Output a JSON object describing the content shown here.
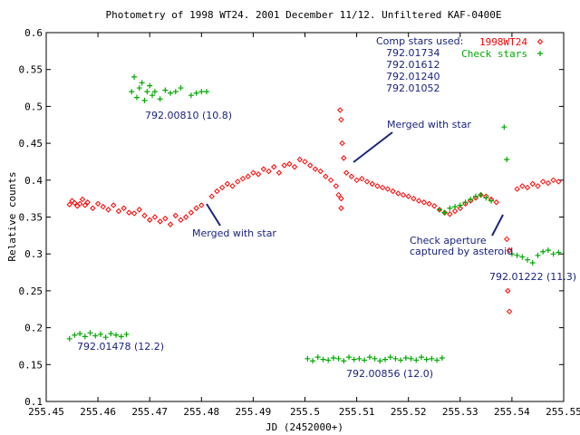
{
  "chart_data": {
    "type": "scatter",
    "title": "Photometry of 1998 WT24. 2001 December 11/12. Unfiltered KAF-0400E",
    "xlabel": "JD (2452000+)",
    "ylabel": "Relative counts",
    "xlim": [
      255.45,
      255.55
    ],
    "ylim": [
      0.1,
      0.6
    ],
    "x_ticks": [
      "255.45",
      "255.46",
      "255.47",
      "255.48",
      "255.49",
      "255.5",
      "255.51",
      "255.52",
      "255.53",
      "255.54",
      "255.55"
    ],
    "y_ticks": [
      "0.1",
      "0.15",
      "0.2",
      "0.25",
      "0.3",
      "0.35",
      "0.4",
      "0.45",
      "0.5",
      "0.55",
      "0.6"
    ],
    "grid": false,
    "legend_position": "top-right",
    "series": [
      {
        "name": "1998WT24",
        "marker": "diamond",
        "color": "#ff0000",
        "points": [
          [
            255.4545,
            0.367
          ],
          [
            255.455,
            0.372
          ],
          [
            255.4555,
            0.369
          ],
          [
            255.456,
            0.365
          ],
          [
            255.4565,
            0.368
          ],
          [
            255.457,
            0.374
          ],
          [
            255.4575,
            0.366
          ],
          [
            255.458,
            0.37
          ],
          [
            255.459,
            0.362
          ],
          [
            255.46,
            0.368
          ],
          [
            255.461,
            0.364
          ],
          [
            255.462,
            0.36
          ],
          [
            255.463,
            0.366
          ],
          [
            255.464,
            0.358
          ],
          [
            255.465,
            0.362
          ],
          [
            255.466,
            0.356
          ],
          [
            255.467,
            0.355
          ],
          [
            255.468,
            0.36
          ],
          [
            255.469,
            0.352
          ],
          [
            255.47,
            0.346
          ],
          [
            255.471,
            0.35
          ],
          [
            255.472,
            0.344
          ],
          [
            255.473,
            0.348
          ],
          [
            255.474,
            0.34
          ],
          [
            255.475,
            0.352
          ],
          [
            255.476,
            0.346
          ],
          [
            255.477,
            0.35
          ],
          [
            255.478,
            0.356
          ],
          [
            255.479,
            0.362
          ],
          [
            255.48,
            0.366
          ],
          [
            255.482,
            0.378
          ],
          [
            255.483,
            0.385
          ],
          [
            255.484,
            0.39
          ],
          [
            255.485,
            0.395
          ],
          [
            255.486,
            0.392
          ],
          [
            255.487,
            0.398
          ],
          [
            255.488,
            0.402
          ],
          [
            255.489,
            0.405
          ],
          [
            255.49,
            0.41
          ],
          [
            255.491,
            0.408
          ],
          [
            255.492,
            0.415
          ],
          [
            255.493,
            0.412
          ],
          [
            255.494,
            0.418
          ],
          [
            255.495,
            0.41
          ],
          [
            255.496,
            0.42
          ],
          [
            255.497,
            0.422
          ],
          [
            255.498,
            0.418
          ],
          [
            255.499,
            0.428
          ],
          [
            255.5,
            0.425
          ],
          [
            255.501,
            0.42
          ],
          [
            255.502,
            0.415
          ],
          [
            255.503,
            0.412
          ],
          [
            255.504,
            0.405
          ],
          [
            255.505,
            0.4
          ],
          [
            255.506,
            0.392
          ],
          [
            255.5065,
            0.38
          ],
          [
            255.507,
            0.375
          ],
          [
            255.5068,
            0.495
          ],
          [
            255.507,
            0.482
          ],
          [
            255.5072,
            0.45
          ],
          [
            255.5075,
            0.43
          ],
          [
            255.507,
            0.362
          ],
          [
            255.508,
            0.41
          ],
          [
            255.509,
            0.405
          ],
          [
            255.51,
            0.4
          ],
          [
            255.511,
            0.402
          ],
          [
            255.512,
            0.398
          ],
          [
            255.513,
            0.395
          ],
          [
            255.514,
            0.392
          ],
          [
            255.515,
            0.39
          ],
          [
            255.516,
            0.388
          ],
          [
            255.517,
            0.385
          ],
          [
            255.518,
            0.382
          ],
          [
            255.519,
            0.38
          ],
          [
            255.52,
            0.378
          ],
          [
            255.521,
            0.375
          ],
          [
            255.522,
            0.372
          ],
          [
            255.523,
            0.37
          ],
          [
            255.524,
            0.368
          ],
          [
            255.525,
            0.365
          ],
          [
            255.526,
            0.36
          ],
          [
            255.527,
            0.356
          ],
          [
            255.528,
            0.354
          ],
          [
            255.529,
            0.358
          ],
          [
            255.53,
            0.362
          ],
          [
            255.531,
            0.368
          ],
          [
            255.532,
            0.372
          ],
          [
            255.533,
            0.376
          ],
          [
            255.534,
            0.38
          ],
          [
            255.535,
            0.378
          ],
          [
            255.536,
            0.374
          ],
          [
            255.537,
            0.37
          ],
          [
            255.539,
            0.32
          ],
          [
            255.5395,
            0.305
          ],
          [
            255.5392,
            0.25
          ],
          [
            255.5395,
            0.222
          ],
          [
            255.541,
            0.388
          ],
          [
            255.542,
            0.392
          ],
          [
            255.543,
            0.39
          ],
          [
            255.544,
            0.395
          ],
          [
            255.545,
            0.392
          ],
          [
            255.546,
            0.398
          ],
          [
            255.547,
            0.396
          ],
          [
            255.548,
            0.4
          ],
          [
            255.549,
            0.398
          ]
        ]
      },
      {
        "name": "Check stars",
        "marker": "plus",
        "color": "#00aa00",
        "points": [
          [
            255.4545,
            0.185
          ],
          [
            255.4555,
            0.19
          ],
          [
            255.4565,
            0.192
          ],
          [
            255.4575,
            0.188
          ],
          [
            255.4585,
            0.193
          ],
          [
            255.4595,
            0.189
          ],
          [
            255.4605,
            0.191
          ],
          [
            255.4615,
            0.187
          ],
          [
            255.4625,
            0.192
          ],
          [
            255.4635,
            0.19
          ],
          [
            255.4645,
            0.188
          ],
          [
            255.4655,
            0.191
          ],
          [
            255.4665,
            0.52
          ],
          [
            255.467,
            0.54
          ],
          [
            255.4675,
            0.512
          ],
          [
            255.468,
            0.525
          ],
          [
            255.4685,
            0.532
          ],
          [
            255.469,
            0.508
          ],
          [
            255.4695,
            0.52
          ],
          [
            255.47,
            0.528
          ],
          [
            255.4705,
            0.515
          ],
          [
            255.471,
            0.52
          ],
          [
            255.472,
            0.51
          ],
          [
            255.473,
            0.522
          ],
          [
            255.474,
            0.518
          ],
          [
            255.475,
            0.52
          ],
          [
            255.476,
            0.525
          ],
          [
            255.478,
            0.515
          ],
          [
            255.479,
            0.518
          ],
          [
            255.48,
            0.52
          ],
          [
            255.481,
            0.52
          ],
          [
            255.5005,
            0.158
          ],
          [
            255.5015,
            0.155
          ],
          [
            255.5025,
            0.16
          ],
          [
            255.5035,
            0.157
          ],
          [
            255.5045,
            0.156
          ],
          [
            255.5055,
            0.159
          ],
          [
            255.5065,
            0.158
          ],
          [
            255.5075,
            0.155
          ],
          [
            255.5085,
            0.16
          ],
          [
            255.5095,
            0.157
          ],
          [
            255.5105,
            0.158
          ],
          [
            255.5115,
            0.156
          ],
          [
            255.5125,
            0.16
          ],
          [
            255.5135,
            0.158
          ],
          [
            255.5145,
            0.155
          ],
          [
            255.5155,
            0.157
          ],
          [
            255.5165,
            0.16
          ],
          [
            255.5175,
            0.158
          ],
          [
            255.5185,
            0.156
          ],
          [
            255.5195,
            0.159
          ],
          [
            255.5205,
            0.158
          ],
          [
            255.5215,
            0.156
          ],
          [
            255.5225,
            0.16
          ],
          [
            255.5235,
            0.157
          ],
          [
            255.5245,
            0.158
          ],
          [
            255.5255,
            0.156
          ],
          [
            255.5265,
            0.159
          ],
          [
            255.526,
            0.36
          ],
          [
            255.527,
            0.356
          ],
          [
            255.528,
            0.362
          ],
          [
            255.529,
            0.364
          ],
          [
            255.53,
            0.366
          ],
          [
            255.531,
            0.37
          ],
          [
            255.532,
            0.374
          ],
          [
            255.533,
            0.378
          ],
          [
            255.534,
            0.38
          ],
          [
            255.535,
            0.376
          ],
          [
            255.536,
            0.372
          ],
          [
            255.5385,
            0.472
          ],
          [
            255.539,
            0.428
          ],
          [
            255.54,
            0.3
          ],
          [
            255.541,
            0.298
          ],
          [
            255.542,
            0.296
          ],
          [
            255.543,
            0.292
          ],
          [
            255.544,
            0.288
          ],
          [
            255.545,
            0.298
          ],
          [
            255.546,
            0.303
          ],
          [
            255.547,
            0.305
          ],
          [
            255.548,
            0.3
          ],
          [
            255.549,
            0.302
          ]
        ]
      }
    ],
    "annotations": [
      {
        "text": "Comp stars used:",
        "color": "#1a237e"
      },
      {
        "text": "792.01734",
        "color": "#1a237e"
      },
      {
        "text": "792.01612",
        "color": "#1a237e"
      },
      {
        "text": "792.01240",
        "color": "#1a237e"
      },
      {
        "text": "792.01052",
        "color": "#1a237e"
      },
      {
        "text": "792.00810 (10.8)",
        "color": "#1a237e"
      },
      {
        "text": "792.01478 (12.2)",
        "color": "#1a237e"
      },
      {
        "text": "792.00856 (12.0)",
        "color": "#1a237e"
      },
      {
        "text": "792.01222 (11.3)",
        "color": "#1a237e"
      },
      {
        "text": "Merged with star",
        "color": "#1a237e"
      },
      {
        "text": "Merged with star",
        "color": "#1a237e"
      },
      {
        "text": "Check aperture",
        "color": "#1a237e"
      },
      {
        "text": "captured by asteroid",
        "color": "#1a237e"
      }
    ]
  }
}
